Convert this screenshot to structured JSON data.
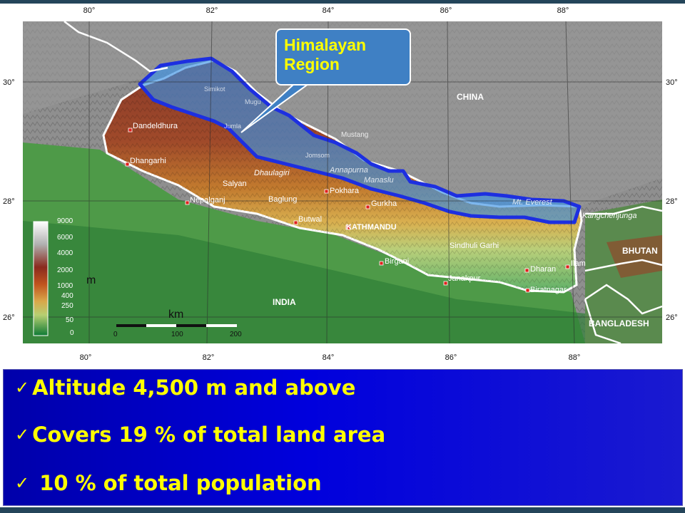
{
  "map": {
    "longitude_labels": [
      "80°",
      "82°",
      "84°",
      "86°",
      "88°"
    ],
    "latitude_labels": [
      "30°",
      "28°",
      "26°"
    ],
    "countries": [
      "CHINA",
      "INDIA",
      "BHUTAN",
      "BANGLADESH"
    ],
    "capital": "KATHMANDU",
    "cities": [
      "Dandeldhura",
      "Dhangarhi",
      "Salyan",
      "Nepalganj",
      "Baglung",
      "Pokhara",
      "Butwal",
      "Gurkha",
      "Birganj",
      "Janakpur",
      "Sindhuli Garhi",
      "Dharan",
      "Ilam",
      "Biratnagar",
      "Jumla",
      "Mustang",
      "Jomsom",
      "Simikot",
      "Mugu"
    ],
    "peaks": [
      "Dhaulagiri",
      "Annapurna",
      "Manaslu",
      "Mt. Everest",
      "Kangchenjunga"
    ],
    "colors": {
      "himalayan_fill": "#3a92e6",
      "himalayan_outline": "#1d2fe0",
      "border_line": "#ffffff"
    }
  },
  "legend": {
    "unit": "m",
    "values": [
      "9000",
      "6000",
      "4000",
      "2000",
      "1000",
      "400",
      "250",
      "50",
      "0"
    ]
  },
  "scale": {
    "unit": "km",
    "ticks": [
      "0",
      "100",
      "200"
    ]
  },
  "callout": {
    "line1": "Himalayan",
    "line2": "Region",
    "color": "#ffff00"
  },
  "bullets": [
    {
      "check": "✓",
      "text": "Altitude 4,500 m and above"
    },
    {
      "check": "✓",
      "text": "Covers 19 % of total land area"
    },
    {
      "check": "✓",
      "text": " 10 % of total population"
    }
  ],
  "panel_colors": {
    "background": "#0000cc",
    "text": "#ffff00"
  }
}
